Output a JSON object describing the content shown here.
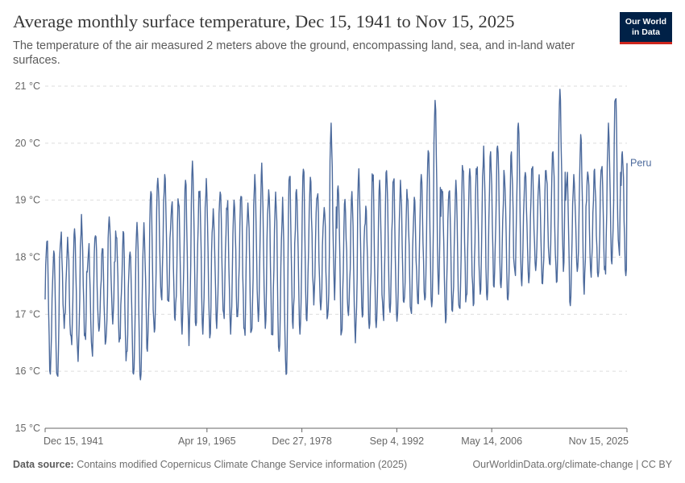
{
  "header": {
    "title": "Average monthly surface temperature, Dec 15, 1941 to Nov 15, 2025",
    "subtitle": "The temperature of the air measured 2 meters above the ground, encompassing land, sea, and in-land water surfaces."
  },
  "logo": {
    "line1": "Our World",
    "line2": "in Data"
  },
  "footer": {
    "source_label": "Data source:",
    "source_text": "Contains modified Copernicus Climate Change Service information (2025)",
    "credit": "OurWorldinData.org/climate-change | CC BY"
  },
  "colors": {
    "series": "#4c6a9c",
    "grid": "#dddddd",
    "axis": "#666666",
    "logo_bg": "#002147",
    "logo_accent": "#ce261e"
  },
  "chart_data": {
    "type": "line",
    "title": "Average monthly surface temperature, Dec 15, 1941 to Nov 15, 2025",
    "ylim": [
      15,
      21
    ],
    "y_ticks": [
      15,
      16,
      17,
      18,
      19,
      20,
      21
    ],
    "y_tick_labels": [
      "15 °C",
      "16 °C",
      "17 °C",
      "18 °C",
      "19 °C",
      "20 °C",
      "21 °C"
    ],
    "x_range": [
      "1941-12-15",
      "2025-11-15"
    ],
    "x_ticks": [
      "1941-12-15",
      "1965-04-19",
      "1978-12-27",
      "1992-09-04",
      "2006-05-14",
      "2025-11-15"
    ],
    "x_tick_labels": [
      "Dec 15, 1941",
      "Apr 19, 1965",
      "Dec 27, 1978",
      "Sep 4, 1992",
      "May 14, 2006",
      "Nov 15, 2025"
    ],
    "grid": "horizontal dashed",
    "series": [
      {
        "name": "Peru",
        "annual_peak_by_year": {
          "1942": 18.3,
          "1943": 18.2,
          "1944": 18.4,
          "1945": 18.3,
          "1946": 18.5,
          "1947": 18.7,
          "1948": 18.2,
          "1949": 18.4,
          "1950": 18.1,
          "1951": 18.8,
          "1952": 18.5,
          "1953": 18.4,
          "1954": 18.1,
          "1955": 18.7,
          "1956": 18.6,
          "1957": 19.1,
          "1958": 19.5,
          "1959": 19.4,
          "1960": 19.0,
          "1961": 19.1,
          "1962": 19.3,
          "1963": 19.7,
          "1964": 19.2,
          "1965": 19.4,
          "1966": 18.8,
          "1967": 19.2,
          "1968": 19.0,
          "1969": 19.1,
          "1970": 19.1,
          "1971": 18.9,
          "1972": 19.4,
          "1973": 19.6,
          "1974": 19.3,
          "1975": 19.2,
          "1976": 19.0,
          "1977": 19.5,
          "1978": 19.3,
          "1979": 19.5,
          "1980": 19.4,
          "1981": 19.2,
          "1982": 19.0,
          "1983": 20.3,
          "1984": 19.2,
          "1985": 19.0,
          "1986": 19.1,
          "1987": 19.5,
          "1988": 18.9,
          "1989": 19.5,
          "1990": 19.3,
          "1991": 19.6,
          "1992": 19.4,
          "1993": 19.3,
          "1994": 19.2,
          "1995": 19.0,
          "1996": 19.4,
          "1997": 19.9,
          "1998": 20.7,
          "1999": 19.3,
          "2000": 19.2,
          "2001": 19.3,
          "2002": 19.6,
          "2003": 19.5,
          "2004": 19.6,
          "2005": 19.9,
          "2006": 19.8,
          "2007": 19.9,
          "2008": 19.5,
          "2009": 19.8,
          "2010": 20.3,
          "2011": 19.5,
          "2012": 19.6,
          "2013": 19.4,
          "2014": 19.6,
          "2015": 19.8,
          "2016": 20.9,
          "2017": 19.5,
          "2018": 19.4,
          "2019": 20.1,
          "2020": 19.6,
          "2021": 19.5,
          "2022": 19.6,
          "2023": 20.3,
          "2024": 20.9,
          "2025": 19.8
        },
        "annual_trough_by_year": {
          "1942": 16.0,
          "1943": 15.9,
          "1944": 16.8,
          "1945": 16.5,
          "1946": 16.2,
          "1947": 16.5,
          "1948": 16.3,
          "1949": 16.6,
          "1950": 16.4,
          "1951": 16.8,
          "1952": 16.5,
          "1953": 16.2,
          "1954": 16.0,
          "1955": 15.9,
          "1956": 16.4,
          "1957": 16.6,
          "1958": 17.2,
          "1959": 17.1,
          "1960": 16.9,
          "1961": 16.7,
          "1962": 16.5,
          "1963": 16.8,
          "1964": 16.7,
          "1965": 16.6,
          "1966": 16.8,
          "1967": 16.9,
          "1968": 16.7,
          "1969": 16.9,
          "1970": 16.6,
          "1971": 16.7,
          "1972": 16.9,
          "1973": 16.8,
          "1974": 16.6,
          "1975": 16.4,
          "1976": 15.9,
          "1977": 16.8,
          "1978": 16.7,
          "1979": 16.9,
          "1980": 17.2,
          "1981": 17.0,
          "1982": 16.8,
          "1983": 17.3,
          "1984": 16.6,
          "1985": 16.9,
          "1986": 16.5,
          "1987": 17.0,
          "1988": 16.8,
          "1989": 16.6,
          "1990": 16.9,
          "1991": 17.0,
          "1992": 16.8,
          "1993": 17.1,
          "1994": 17.0,
          "1995": 17.2,
          "1996": 17.3,
          "1997": 17.1,
          "1998": 17.4,
          "1999": 16.9,
          "2000": 17.1,
          "2001": 17.0,
          "2002": 17.2,
          "2003": 17.2,
          "2004": 17.4,
          "2005": 17.3,
          "2006": 17.5,
          "2007": 17.5,
          "2008": 17.3,
          "2009": 17.6,
          "2010": 17.4,
          "2011": 17.6,
          "2012": 17.6,
          "2013": 17.5,
          "2014": 17.8,
          "2015": 17.6,
          "2016": 17.8,
          "2017": 17.2,
          "2018": 17.8,
          "2019": 17.4,
          "2020": 17.7,
          "2021": 17.5,
          "2022": 17.7,
          "2023": 17.9,
          "2024": 18.0,
          "2025": 17.7
        },
        "last_value": 19.65
      }
    ]
  }
}
